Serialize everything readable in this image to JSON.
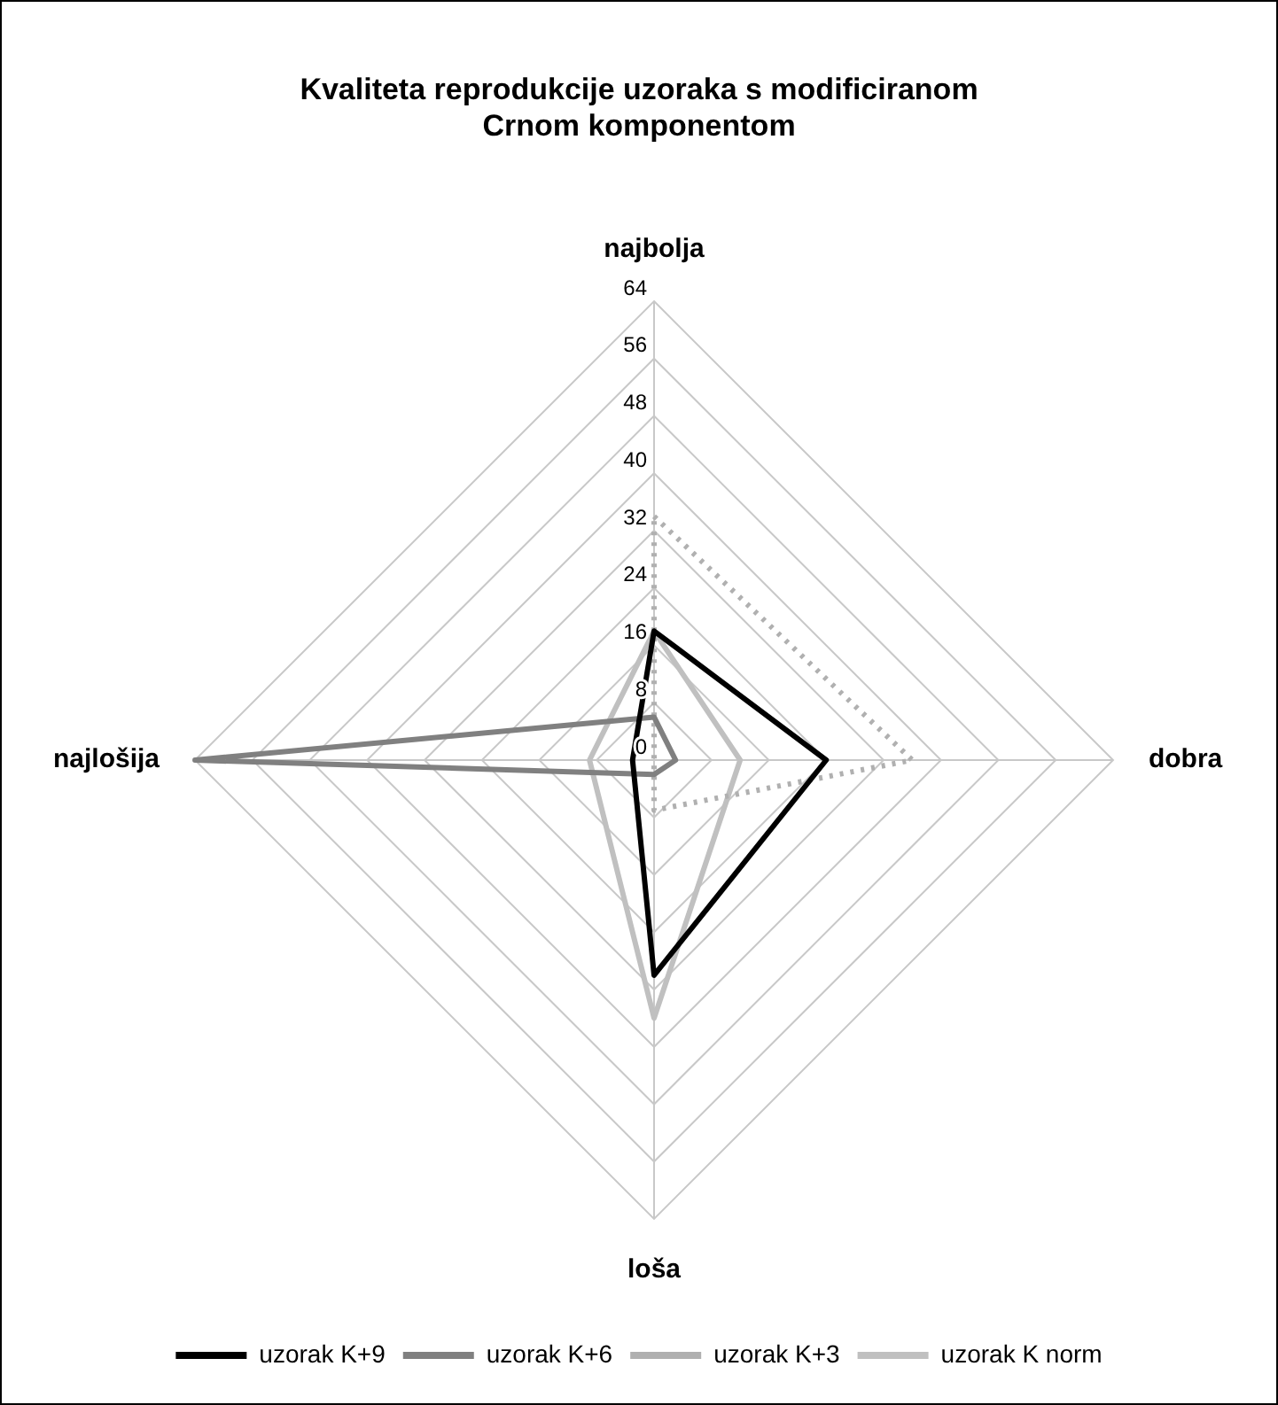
{
  "chart_data": {
    "type": "radar",
    "title": [
      "Kvaliteta reprodukcije uzoraka s modificiranom",
      "Crnom komponentom"
    ],
    "categories": [
      "najbolja",
      "dobra",
      "loša",
      "najlošija"
    ],
    "series": [
      {
        "name": "uzorak K+9",
        "color": "#000000",
        "values": [
          18,
          24,
          30,
          3
        ]
      },
      {
        "name": "uzorak K+6",
        "color": "#808080",
        "values": [
          6,
          3,
          2,
          64
        ]
      },
      {
        "name": "uzorak K+3",
        "color": "#b0b0b0",
        "values": [
          34,
          36,
          7,
          0
        ],
        "line_style": "dotted"
      },
      {
        "name": "uzorak K norm",
        "color": "#c0c0c0",
        "values": [
          18,
          12,
          36,
          9
        ]
      }
    ],
    "ylim": [
      0,
      64
    ],
    "yticks": [
      0,
      8,
      16,
      24,
      32,
      40,
      48,
      56,
      64
    ],
    "grid": true,
    "legend": "bottom",
    "marker": "none"
  }
}
